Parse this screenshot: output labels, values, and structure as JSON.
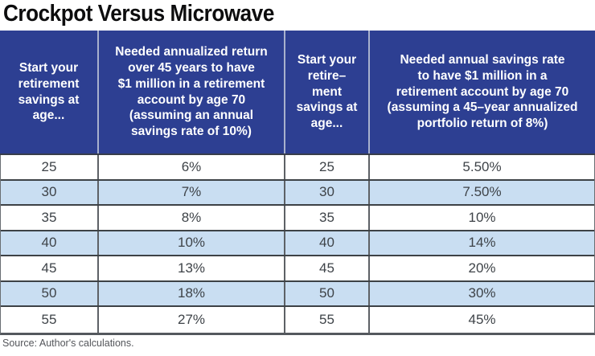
{
  "title": "Crockpot Versus Microwave",
  "source": "Source: Author's calculations.",
  "colors": {
    "header_bg": "#2d3f92",
    "header_divider": "#a8b1cd",
    "row_alt": "#c9def2",
    "row_border": "#3d4246",
    "col_border": "#5d6166",
    "cell_text": "#3e4348"
  },
  "table": {
    "display_headers": [
      "Start your\nretirement\nsavings at\nage...",
      "Needed annualized return\nover 45 years to have\n$1 million in a retirement\naccount by age 70\n(assuming an annual\nsavings rate of 10%)",
      "Start your\nretire–\nment\nsavings at\nage...",
      "Needed annual savings rate\nto have $1 million in a\nretirement account by age 70\n(assuming a 45–year annualized\nportfolio return of 8%)"
    ]
  },
  "chart_data": {
    "type": "table",
    "title": "Crockpot Versus Microwave",
    "columns": [
      "Start your retirement savings at age...",
      "Needed annualized return over 45 years to have $1 million in a retirement account by age 70 (assuming an annual savings rate of 10%)",
      "Start your retirement savings at age...",
      "Needed annual savings rate to have $1 million in a retirement account by age 70 (assuming a 45–year annualized portfolio return of 8%)"
    ],
    "rows": [
      [
        "25",
        "6%",
        "25",
        "5.50%"
      ],
      [
        "30",
        "7%",
        "30",
        "7.50%"
      ],
      [
        "35",
        "8%",
        "35",
        "10%"
      ],
      [
        "40",
        "10%",
        "40",
        "14%"
      ],
      [
        "45",
        "13%",
        "45",
        "20%"
      ],
      [
        "50",
        "18%",
        "50",
        "30%"
      ],
      [
        "55",
        "27%",
        "55",
        "45%"
      ]
    ],
    "source": "Source: Author's calculations."
  }
}
